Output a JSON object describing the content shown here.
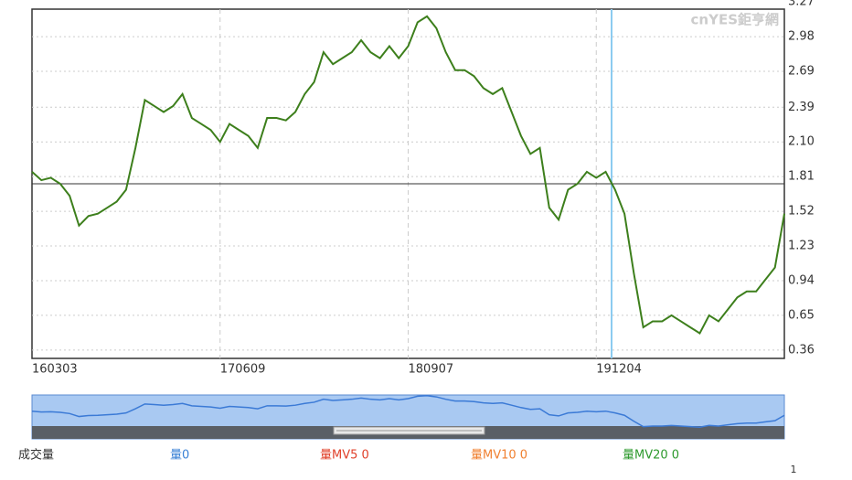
{
  "chart_data": {
    "type": "line",
    "watermark": "cnYES鉅亨網",
    "categories": [
      "160303",
      null,
      null,
      null,
      null,
      null,
      null,
      null,
      null,
      null,
      null,
      null,
      null,
      null,
      null,
      null,
      null,
      null,
      null,
      null,
      "170609",
      null,
      null,
      null,
      null,
      null,
      null,
      null,
      null,
      null,
      null,
      null,
      null,
      null,
      null,
      null,
      null,
      null,
      null,
      null,
      "180907",
      null,
      null,
      null,
      null,
      null,
      null,
      null,
      null,
      null,
      null,
      null,
      null,
      null,
      null,
      null,
      null,
      null,
      null,
      null,
      "191204",
      null,
      null,
      null,
      null,
      null,
      null,
      null,
      null,
      null,
      null,
      null,
      null,
      null,
      null,
      null,
      null,
      null,
      null,
      null,
      null
    ],
    "values": [
      1.85,
      1.78,
      1.8,
      1.75,
      1.65,
      1.4,
      1.48,
      1.5,
      1.55,
      1.6,
      1.7,
      2.05,
      2.45,
      2.4,
      2.35,
      2.4,
      2.5,
      2.3,
      2.25,
      2.2,
      2.1,
      2.25,
      2.2,
      2.15,
      2.05,
      2.3,
      2.3,
      2.28,
      2.35,
      2.5,
      2.6,
      2.85,
      2.75,
      2.8,
      2.85,
      2.95,
      2.85,
      2.8,
      2.9,
      2.8,
      2.9,
      3.1,
      3.15,
      3.05,
      2.85,
      2.7,
      2.7,
      2.65,
      2.55,
      2.5,
      2.55,
      2.35,
      2.15,
      2.0,
      2.05,
      1.55,
      1.45,
      1.7,
      1.75,
      1.85,
      1.8,
      1.85,
      1.7,
      1.5,
      1.0,
      0.55,
      0.6,
      0.6,
      0.65,
      0.6,
      0.55,
      0.5,
      0.65,
      0.6,
      0.7,
      0.8,
      0.85,
      0.85,
      0.95,
      1.05,
      1.5
    ],
    "color": "#3d7f1c",
    "reference_line": 1.75,
    "ylim": [
      0.29,
      3.21
    ],
    "yticks": [
      {
        "value": 3.27,
        "label": "3.27"
      },
      2.98,
      2.69,
      2.39,
      {
        "value": 2.1,
        "label": "2.10"
      },
      1.81,
      1.52,
      1.23,
      0.94,
      0.65,
      0.36
    ],
    "grid": true,
    "legend": [
      {
        "name": "成交量",
        "color": "#333333"
      },
      {
        "name": "量0",
        "color": "#3b82d6"
      },
      {
        "name": "量MV5 0",
        "color": "#e0402a"
      },
      {
        "name": "量MV10 0",
        "color": "#f08030"
      },
      {
        "name": "量MV20 0",
        "color": "#2e9a2e"
      }
    ],
    "footer": "1"
  }
}
